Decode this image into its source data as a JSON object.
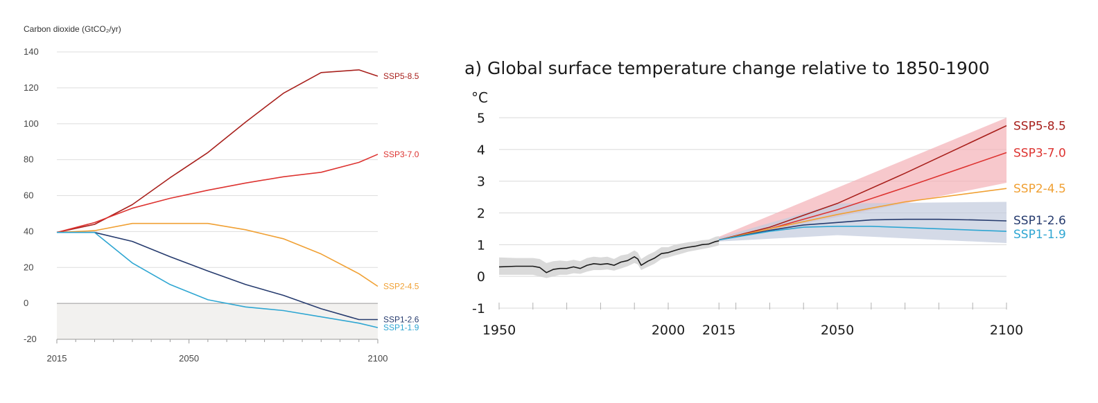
{
  "chart_data": [
    {
      "type": "line",
      "title": "",
      "ylabel": "Carbon dioxide (GtCO₂/yr)",
      "xlabel": "",
      "xlim": [
        2015,
        2100
      ],
      "ylim": [
        -20,
        140
      ],
      "xticks": [
        2015,
        2050,
        2100
      ],
      "yticks": [
        -20,
        0,
        20,
        40,
        60,
        80,
        100,
        120,
        140
      ],
      "grid": true,
      "negative_region_shaded": true,
      "series": [
        {
          "name": "SSP5-8.5",
          "color": "#a8201c",
          "x": [
            2015,
            2025,
            2035,
            2045,
            2055,
            2065,
            2075,
            2085,
            2095,
            2100
          ],
          "y": [
            39.5,
            44,
            55,
            70,
            84,
            101,
            117,
            128.5,
            130,
            126.5
          ]
        },
        {
          "name": "SSP3-7.0",
          "color": "#dd3330",
          "x": [
            2015,
            2025,
            2035,
            2045,
            2055,
            2065,
            2075,
            2085,
            2095,
            2100
          ],
          "y": [
            39.5,
            45,
            53,
            58.5,
            63,
            67,
            70.5,
            73,
            78.5,
            83
          ]
        },
        {
          "name": "SSP2-4.5",
          "color": "#f0a033",
          "x": [
            2015,
            2025,
            2035,
            2045,
            2055,
            2065,
            2075,
            2085,
            2095,
            2100
          ],
          "y": [
            39.5,
            40.5,
            44.5,
            44.5,
            44.5,
            41,
            36,
            27.5,
            16.5,
            9.5
          ]
        },
        {
          "name": "SSP1-2.6",
          "color": "#263b6e",
          "x": [
            2015,
            2025,
            2035,
            2045,
            2055,
            2065,
            2075,
            2085,
            2095,
            2100
          ],
          "y": [
            39.5,
            39.5,
            34.5,
            26,
            18,
            10.5,
            4.5,
            -3,
            -9,
            -9
          ]
        },
        {
          "name": "SSP1-1.9",
          "color": "#2ea6d2",
          "x": [
            2015,
            2025,
            2035,
            2045,
            2055,
            2065,
            2075,
            2085,
            2095,
            2100
          ],
          "y": [
            39.5,
            39.5,
            22.5,
            10.5,
            2,
            -2,
            -4,
            -7.5,
            -11,
            -13.5
          ]
        }
      ]
    },
    {
      "type": "line",
      "title": "a) Global surface temperature change relative to 1850-1900",
      "ylabel": "°C",
      "xlabel": "",
      "xlim": [
        1950,
        2100
      ],
      "ylim": [
        -1,
        5
      ],
      "xticks": [
        1950,
        2000,
        2015,
        2050,
        2100
      ],
      "yticks": [
        -1,
        0,
        1,
        2,
        3,
        4,
        5
      ],
      "grid": true,
      "historical": {
        "color": "#1a1a1a",
        "x": [
          1950,
          1955,
          1960,
          1962,
          1964,
          1966,
          1968,
          1970,
          1972,
          1974,
          1976,
          1978,
          1980,
          1982,
          1984,
          1986,
          1988,
          1990,
          1991,
          1992,
          1994,
          1996,
          1998,
          2000,
          2002,
          2004,
          2006,
          2008,
          2010,
          2012,
          2014,
          2015
        ],
        "y": [
          0.3,
          0.32,
          0.32,
          0.28,
          0.12,
          0.22,
          0.25,
          0.25,
          0.3,
          0.25,
          0.35,
          0.4,
          0.38,
          0.4,
          0.35,
          0.45,
          0.5,
          0.62,
          0.55,
          0.35,
          0.48,
          0.58,
          0.72,
          0.75,
          0.82,
          0.88,
          0.92,
          0.95,
          1.0,
          1.02,
          1.1,
          1.12
        ],
        "band_low": [
          0.05,
          0.05,
          0.05,
          0.0,
          -0.05,
          0.0,
          0.05,
          0.05,
          0.1,
          0.08,
          0.15,
          0.2,
          0.2,
          0.22,
          0.18,
          0.25,
          0.32,
          0.42,
          0.38,
          0.2,
          0.3,
          0.4,
          0.55,
          0.6,
          0.66,
          0.72,
          0.78,
          0.82,
          0.86,
          0.9,
          0.95,
          0.98
        ],
        "band_high": [
          0.6,
          0.58,
          0.58,
          0.55,
          0.42,
          0.48,
          0.5,
          0.48,
          0.52,
          0.48,
          0.58,
          0.62,
          0.6,
          0.62,
          0.55,
          0.66,
          0.7,
          0.82,
          0.75,
          0.55,
          0.68,
          0.78,
          0.92,
          0.92,
          1.0,
          1.04,
          1.08,
          1.1,
          1.14,
          1.16,
          1.25,
          1.27
        ]
      },
      "bands": [
        {
          "name": "SSP3-7.0",
          "color": "#f4b1b6",
          "x": [
            2015,
            2100
          ],
          "low": [
            1.12,
            2.95
          ],
          "high": [
            1.25,
            5.0
          ]
        },
        {
          "name": "SSP1-2.6",
          "color": "#c2cbdd",
          "x": [
            2015,
            2050,
            2100
          ],
          "low": [
            1.1,
            1.3,
            1.05
          ],
          "high": [
            1.22,
            2.3,
            2.35
          ]
        }
      ],
      "series": [
        {
          "name": "SSP5-8.5",
          "color": "#a8201c",
          "x": [
            2015,
            2030,
            2050,
            2070,
            2100
          ],
          "y": [
            1.15,
            1.55,
            2.3,
            3.25,
            4.75
          ]
        },
        {
          "name": "SSP3-7.0",
          "color": "#dd3330",
          "x": [
            2015,
            2030,
            2050,
            2070,
            2100
          ],
          "y": [
            1.15,
            1.5,
            2.1,
            2.8,
            3.9
          ]
        },
        {
          "name": "SSP2-4.5",
          "color": "#f0a033",
          "x": [
            2015,
            2030,
            2050,
            2070,
            2100
          ],
          "y": [
            1.15,
            1.5,
            1.95,
            2.35,
            2.77
          ]
        },
        {
          "name": "SSP1-2.6",
          "color": "#263b6e",
          "x": [
            2015,
            2030,
            2040,
            2050,
            2060,
            2070,
            2080,
            2090,
            2100
          ],
          "y": [
            1.15,
            1.45,
            1.62,
            1.7,
            1.78,
            1.8,
            1.8,
            1.78,
            1.75
          ]
        },
        {
          "name": "SSP1-1.9",
          "color": "#2ea6d2",
          "x": [
            2015,
            2030,
            2040,
            2050,
            2060,
            2070,
            2080,
            2090,
            2100
          ],
          "y": [
            1.15,
            1.42,
            1.55,
            1.58,
            1.58,
            1.54,
            1.5,
            1.46,
            1.42
          ]
        }
      ]
    }
  ]
}
